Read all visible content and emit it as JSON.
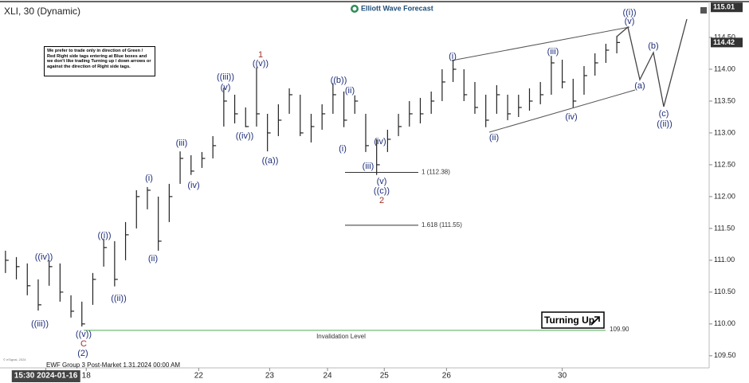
{
  "chart_data": {
    "type": "ohlc",
    "title": "XLI, 30 (Dynamic)",
    "brand": "Elliott Wave Forecast",
    "note": "We prefer to trade only in direction of Green / Red Right side tags entering at Blue boxes and we don't like trading Turning up / down arrows or against the direction of Right side tags.",
    "badge": "Turning Up",
    "footer": "EWF Group 3 Post-Market 1.31.2024 00:00 AM",
    "copyright": "© eSignal, 2024",
    "color": "#222222",
    "high": [
      111.15,
      111.05,
      110.95,
      110.7,
      111.0,
      110.95,
      110.45,
      110.35,
      110.8,
      111.34,
      111.3,
      111.6,
      112.1,
      112.15,
      112.0,
      112.2,
      112.71,
      112.65,
      112.7,
      112.95,
      113.71,
      113.6,
      113.4,
      114.03,
      113.3,
      113.45,
      113.7,
      113.6,
      113.3,
      113.45,
      113.78,
      113.65,
      113.59,
      113.3,
      112.9,
      113.05,
      113.3,
      113.5,
      113.55,
      113.65,
      114.0,
      114.15,
      114.0,
      113.8,
      113.6,
      113.75,
      113.6,
      113.6,
      113.7,
      113.8,
      114.21,
      114.15,
      113.85,
      114.05,
      114.25,
      114.4,
      114.52
    ],
    "low": [
      110.8,
      110.7,
      110.45,
      110.21,
      110.6,
      110.35,
      110.1,
      109.96,
      110.3,
      110.9,
      110.59,
      111.0,
      111.5,
      111.8,
      111.15,
      111.6,
      112.2,
      112.34,
      112.45,
      112.6,
      113.1,
      113.15,
      113.09,
      113.1,
      112.71,
      112.95,
      113.3,
      112.95,
      112.85,
      113.05,
      113.3,
      113.09,
      113.3,
      112.7,
      112.34,
      112.7,
      112.95,
      113.1,
      113.15,
      113.3,
      113.5,
      113.8,
      113.5,
      113.3,
      113.09,
      113.3,
      113.2,
      113.25,
      113.35,
      113.45,
      113.6,
      113.7,
      113.4,
      113.6,
      113.9,
      114.1,
      114.25
    ],
    "close": [
      111.0,
      110.9,
      110.6,
      110.3,
      110.9,
      110.5,
      110.2,
      110.0,
      110.7,
      111.2,
      110.7,
      111.4,
      112.0,
      112.1,
      111.3,
      112.0,
      112.6,
      112.4,
      112.6,
      112.8,
      113.5,
      113.3,
      113.1,
      113.3,
      113.0,
      113.2,
      113.6,
      113.0,
      113.1,
      113.3,
      113.6,
      113.2,
      113.5,
      112.8,
      112.5,
      112.9,
      113.1,
      113.3,
      113.3,
      113.5,
      113.8,
      114.0,
      113.6,
      113.4,
      113.2,
      113.6,
      113.3,
      113.4,
      113.5,
      113.6,
      114.1,
      113.8,
      113.5,
      113.9,
      114.1,
      114.3,
      114.42
    ],
    "xlim": [
      -0.5,
      64.46
    ],
    "xticks": [
      {
        "value": 3.7,
        "label": "15:30 2024-01-16"
      },
      {
        "value": 7.4,
        "label": "18"
      },
      {
        "value": 17.7,
        "label": "22"
      },
      {
        "value": 24.2,
        "label": "23"
      },
      {
        "value": 29.5,
        "label": "24"
      },
      {
        "value": 34.7,
        "label": "25"
      },
      {
        "value": 40.4,
        "label": "26"
      },
      {
        "value": 51,
        "label": "30"
      }
    ],
    "ylim": [
      109.31,
      115.0875
    ],
    "yticks": [
      {
        "value": 109.5,
        "label": "109.50"
      },
      {
        "value": 110,
        "label": "110.00"
      },
      {
        "value": 110.5,
        "label": "110.50"
      },
      {
        "value": 111,
        "label": "111.00"
      },
      {
        "value": 111.5,
        "label": "111.50"
      },
      {
        "value": 112,
        "label": "112.00"
      },
      {
        "value": 112.5,
        "label": "112.50"
      },
      {
        "value": 113,
        "label": "113.00"
      },
      {
        "value": 113.5,
        "label": "113.50"
      },
      {
        "value": 114,
        "label": "114.00"
      },
      {
        "value": 114.5,
        "label": "114.50"
      }
    ],
    "axis_top_label": 115.01,
    "last_price": 114.42,
    "fib_levels": [
      {
        "value": 112.38,
        "label": "1 (112.38)"
      },
      {
        "value": 111.55,
        "label": "1.618 (111.55)"
      }
    ],
    "invalidation": {
      "value": 109.9,
      "label": "109.90"
    },
    "invalidation_text": "Invalidation Level",
    "wave_labels": [
      "((iii))",
      "((iv))",
      "((v))",
      "C",
      "(2)",
      "((i))",
      "((ii))",
      "(i)",
      "(ii)",
      "(iii)",
      "(iv)",
      "(v)",
      "((iii))",
      "((iv))",
      "1",
      "((v))",
      "((a))",
      "((b))",
      "(ii)",
      "(i)",
      "(iv)",
      "(iii)",
      "(v)",
      "((c))",
      "2",
      "(i)",
      "(ii)",
      "(iii)",
      "(iv)",
      "((i))",
      "(v)",
      "(b)",
      "(a)",
      "(c)",
      "((ii))"
    ]
  }
}
